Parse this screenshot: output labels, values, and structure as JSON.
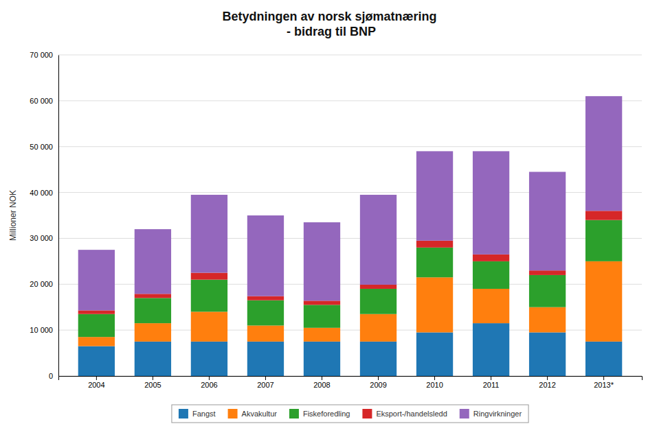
{
  "chart_data": {
    "type": "bar",
    "stacked": true,
    "title": "Betydningen av norsk sjømatnæring\n - bidrag til BNP",
    "ylabel": "Millioner NOK",
    "categories": [
      "2004",
      "2005",
      "2006",
      "2007",
      "2008",
      "2009",
      "2010",
      "2011",
      "2012",
      "2013*"
    ],
    "series": [
      {
        "name": "Fangst",
        "values": [
          6500,
          7500,
          7500,
          7500,
          7500,
          7500,
          9500,
          11500,
          9500,
          7500
        ]
      },
      {
        "name": "Akvakultur",
        "values": [
          2000,
          4000,
          6500,
          3500,
          3000,
          6000,
          12000,
          7500,
          5500,
          17500
        ]
      },
      {
        "name": "Fiskeforedling",
        "values": [
          5000,
          5500,
          7000,
          5500,
          5000,
          5500,
          6500,
          6000,
          7000,
          9000
        ]
      },
      {
        "name": "Eksport-/handelsledd",
        "values": [
          800,
          900,
          1500,
          900,
          900,
          900,
          1500,
          1500,
          1000,
          2000
        ]
      },
      {
        "name": "Ringvirkninger",
        "values": [
          13200,
          14100,
          17000,
          17600,
          17100,
          19600,
          19500,
          22500,
          21500,
          25000
        ]
      }
    ],
    "ylim": [
      0,
      70000
    ],
    "yticks": [
      0,
      {
        "value": 10000,
        "label": "10 000"
      },
      {
        "value": 20000,
        "label": "20 000"
      },
      {
        "value": 30000,
        "label": "30 000"
      },
      {
        "value": 40000,
        "label": "40 000"
      },
      {
        "value": 50000,
        "label": "50 000"
      },
      {
        "value": 60000,
        "label": "60 000"
      },
      {
        "value": 70000,
        "label": "70 000"
      }
    ],
    "grid": true,
    "legend": "bottom"
  }
}
